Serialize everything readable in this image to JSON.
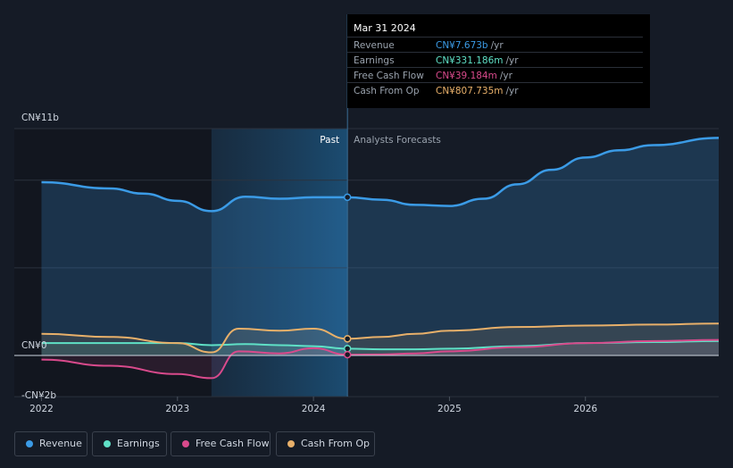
{
  "tooltip": {
    "date": "Mar 31 2024",
    "rows": [
      {
        "label": "Revenue",
        "value": "CN¥7.673b",
        "unit": "/yr",
        "color": "#3b9be6"
      },
      {
        "label": "Earnings",
        "value": "CN¥331.186m",
        "unit": "/yr",
        "color": "#5fe0c6"
      },
      {
        "label": "Free Cash Flow",
        "value": "CN¥39.184m",
        "unit": "/yr",
        "color": "#d94a8c"
      },
      {
        "label": "Cash From Op",
        "value": "CN¥807.735m",
        "unit": "/yr",
        "color": "#e8b06a"
      }
    ]
  },
  "legend": [
    {
      "label": "Revenue",
      "color": "#3b9be6"
    },
    {
      "label": "Earnings",
      "color": "#5fe0c6"
    },
    {
      "label": "Free Cash Flow",
      "color": "#d94a8c"
    },
    {
      "label": "Cash From Op",
      "color": "#e8b06a"
    }
  ],
  "chart_data": {
    "type": "line",
    "y_unit": "CN¥ billions",
    "ylim": [
      -2,
      11
    ],
    "y_tick_labels": [
      "CN¥11b",
      "CN¥0",
      "-CN¥2b"
    ],
    "x_tick_labels": [
      "2022",
      "2023",
      "2024",
      "2025",
      "2026"
    ],
    "xlim": [
      2021.8,
      2026.98
    ],
    "past_label": "Past",
    "forecast_label": "Analysts Forecasts",
    "past_end_x": 2024.25,
    "highlight_start_x": 2023.25,
    "grid": true,
    "legend_position": "bottom",
    "series": [
      {
        "name": "Revenue",
        "color": "#3b9be6",
        "x": [
          2022.0,
          2022.5,
          2022.75,
          2023.0,
          2023.25,
          2023.5,
          2023.75,
          2024.0,
          2024.25,
          2024.5,
          2024.75,
          2025.0,
          2025.25,
          2025.5,
          2025.75,
          2026.0,
          2026.25,
          2026.5,
          2026.98
        ],
        "y": [
          8.4,
          8.1,
          7.85,
          7.5,
          7.0,
          7.7,
          7.6,
          7.67,
          7.673,
          7.55,
          7.3,
          7.25,
          7.6,
          8.3,
          9.0,
          9.6,
          9.95,
          10.2,
          10.55
        ]
      },
      {
        "name": "Earnings",
        "color": "#5fe0c6",
        "x": [
          2022.0,
          2022.5,
          2023.0,
          2023.25,
          2023.5,
          2023.75,
          2024.0,
          2024.25,
          2024.5,
          2024.75,
          2025.0,
          2025.5,
          2026.0,
          2026.5,
          2026.98
        ],
        "y": [
          0.6,
          0.6,
          0.6,
          0.5,
          0.55,
          0.5,
          0.45,
          0.331,
          0.3,
          0.3,
          0.33,
          0.45,
          0.6,
          0.65,
          0.7
        ]
      },
      {
        "name": "Free Cash Flow",
        "color": "#d94a8c",
        "x": [
          2022.0,
          2022.5,
          2023.0,
          2023.25,
          2023.45,
          2023.75,
          2024.0,
          2024.25,
          2024.5,
          2024.75,
          2025.0,
          2025.5,
          2026.0,
          2026.5,
          2026.98
        ],
        "y": [
          -0.2,
          -0.5,
          -0.9,
          -1.1,
          0.2,
          0.1,
          0.35,
          0.039,
          0.05,
          0.1,
          0.2,
          0.4,
          0.6,
          0.7,
          0.75
        ]
      },
      {
        "name": "Cash From Op",
        "color": "#e8b06a",
        "x": [
          2022.0,
          2022.5,
          2023.0,
          2023.25,
          2023.45,
          2023.75,
          2024.0,
          2024.25,
          2024.5,
          2024.75,
          2025.0,
          2025.5,
          2026.0,
          2026.5,
          2026.98
        ],
        "y": [
          1.05,
          0.9,
          0.6,
          0.15,
          1.3,
          1.2,
          1.3,
          0.808,
          0.9,
          1.05,
          1.2,
          1.38,
          1.45,
          1.5,
          1.55
        ]
      }
    ]
  }
}
